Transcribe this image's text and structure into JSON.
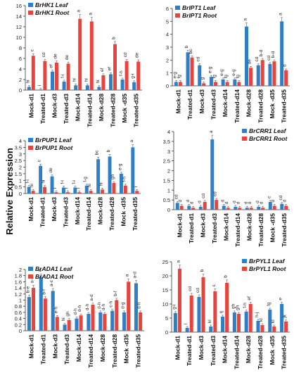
{
  "ylabel": "Relative Expression",
  "chart_data": [
    {
      "type": "bar",
      "categories": [
        "Mock-d1",
        "Treated-d1",
        "Mock-d3",
        "Treated-d3",
        "Mock-d14",
        "Treated-d14",
        "Mock-d28",
        "Treated-d28",
        "Mock -d35",
        "Treated-d35"
      ],
      "ylim": [
        0,
        16
      ],
      "yticks": [
        0,
        2,
        4,
        6,
        8,
        10,
        12,
        14,
        16
      ],
      "grid": false,
      "legend_position": "top-left",
      "series": [
        {
          "name": "BrHK1 Leaf",
          "color": "#2f7fc6",
          "values": [
            0.6,
            0.1,
            3.5,
            1.6,
            0.9,
            0.9,
            0.6,
            3.0,
            2.0,
            1.5
          ],
          "labels": [
            "hi",
            "i",
            "ef",
            "f-i",
            "hi",
            "hi",
            "hi",
            "ef",
            "f-h",
            "g-i"
          ]
        },
        {
          "name": "BrHK1 Root",
          "color": "#e8433c",
          "values": [
            6.5,
            5.5,
            5.2,
            5.0,
            13.5,
            13.0,
            2.8,
            8.7,
            5.5,
            5.4
          ],
          "labels": [
            "c",
            "cd",
            "de",
            "de",
            "a",
            "a",
            "ef",
            "b",
            "cd",
            "de"
          ]
        }
      ]
    },
    {
      "type": "bar",
      "categories": [
        "Mock-d1",
        "Treated-d1",
        "Mock-d3",
        "Treated-d3",
        "Mock-d14",
        "Treated-d14",
        "Mock-d28",
        "Treated-d28",
        "Mock -d35",
        "Treated-d35"
      ],
      "ylim": [
        0,
        6
      ],
      "yticks": [
        0,
        1,
        2,
        3,
        4,
        5,
        6
      ],
      "grid": false,
      "legend_position": "top-left",
      "series": [
        {
          "name": "BrIPT1 Leaf",
          "color": "#2f7fc6",
          "values": [
            0.3,
            2.6,
            1.6,
            0.7,
            0.5,
            0.5,
            4.6,
            1.6,
            1.7,
            5.0
          ],
          "labels": [
            "e-g",
            "b",
            "cd",
            "e-g",
            "e-g",
            "e-g",
            "a",
            "cd",
            "cd",
            "a"
          ]
        },
        {
          "name": "BrIPT1 Root",
          "color": "#e8433c",
          "values": [
            0.3,
            2.2,
            0.2,
            0.3,
            0.3,
            0.3,
            1.4,
            2.0,
            1.9,
            1.2
          ],
          "labels": [
            "fg",
            "bc",
            "g",
            "fg",
            "fg",
            "fg",
            "de",
            "b-d",
            "b-d",
            "d"
          ]
        }
      ]
    },
    {
      "type": "bar",
      "categories": [
        "Mock-d1",
        "Treated-d1",
        "Mock-d3",
        "Treated-d3",
        "Mock-d14",
        "Treated-d14",
        "Mock-d28",
        "Treated-d28",
        "Mock -d35",
        "Treated-d35"
      ],
      "ylim": [
        0,
        4
      ],
      "yticks": [
        0,
        0.5,
        1,
        1.5,
        2,
        2.5,
        3,
        3.5,
        4
      ],
      "grid": false,
      "legend_position": "top-left",
      "series": [
        {
          "name": "BrPUP1 Leaf",
          "color": "#2f7fc6",
          "values": [
            0.5,
            2.1,
            1.3,
            0.45,
            0.45,
            0.6,
            2.6,
            2.8,
            1.5,
            3.5
          ],
          "labels": [
            "f-i",
            "c",
            "de",
            "f-i",
            "f-i",
            "f-g",
            "bc",
            "b",
            "e-g",
            "a"
          ]
        },
        {
          "name": "BrPUP1 Root",
          "color": "#e8433c",
          "values": [
            0.2,
            0.5,
            0.1,
            0.1,
            0.1,
            0.2,
            0.3,
            0.8,
            0.6,
            0.2
          ],
          "labels": [
            "hi",
            "hi",
            "i",
            "i",
            "i",
            "hi",
            "hi",
            "gh",
            "f-h",
            "i"
          ]
        }
      ]
    },
    {
      "type": "bar",
      "categories": [
        "Mock-d1",
        "Treated-d1",
        "Mock-d3",
        "Treated-d3",
        "Mock-d14",
        "Treated-d14",
        "Mock-d28",
        "Treated-d28",
        "Mock -d35",
        "Treated-d35"
      ],
      "ylim": [
        0,
        4
      ],
      "yticks": [
        0,
        0.5,
        1,
        1.5,
        2,
        2.5,
        3,
        3.5,
        4
      ],
      "grid": false,
      "legend_position": "top-right",
      "series": [
        {
          "name": "BrCRR1 Leaf",
          "color": "#2f7fc6",
          "values": [
            0.35,
            0.2,
            0.15,
            3.6,
            0.2,
            0.15,
            0.1,
            0.15,
            0.4,
            0.3
          ],
          "labels": [
            "cd",
            "d",
            "d",
            "a",
            "d",
            "d",
            "d",
            "d",
            "c",
            "cd"
          ]
        },
        {
          "name": "BrCRR1 Root",
          "color": "#e8433c",
          "values": [
            0.2,
            0.1,
            0.4,
            0.5,
            0.1,
            0.1,
            0.1,
            0.1,
            0.2,
            0.2
          ],
          "labels": [
            "d",
            "d",
            "cd",
            "cd",
            "d",
            "d",
            "d",
            "d",
            "d",
            "d"
          ]
        }
      ]
    },
    {
      "type": "bar",
      "categories": [
        "Mock-d1",
        "Treated-d1",
        "Mock-d3",
        "Treated-d3",
        "Mock-d14",
        "Treated-d14",
        "Mock-d28",
        "Treated-d28",
        "Mock -d35",
        "Treated-d35"
      ],
      "ylim": [
        0,
        2
      ],
      "yticks": [
        0,
        0.2,
        0.4,
        0.6,
        0.8,
        1,
        1.2,
        1.4,
        1.6,
        1.8,
        2
      ],
      "grid": false,
      "legend_position": "top-left",
      "series": [
        {
          "name": "BrADA1 Leaf",
          "color": "#2f7fc6",
          "values": [
            1.1,
            1.75,
            1.3,
            0.2,
            0.4,
            0.55,
            0.6,
            0.65,
            0.6,
            1.55
          ],
          "labels": [
            "b-e",
            "a",
            "a-c",
            "hi",
            "d-h",
            "d-h",
            "d-h",
            "c-h",
            "d-g",
            "a-d"
          ]
        },
        {
          "name": "BrADA1 Root",
          "color": "#e8433c",
          "values": [
            1.4,
            1.05,
            0.45,
            0.35,
            0.5,
            0.85,
            0.55,
            1.0,
            1.6,
            0.6
          ],
          "labels": [
            "a-d",
            "b-f",
            "e-h",
            "gh",
            "d-h",
            "a-d",
            "d-h",
            "b-f",
            "a",
            "d-h"
          ]
        }
      ]
    },
    {
      "type": "bar",
      "categories": [
        "Mock-d1",
        "Treated-d1",
        "Mock-d3",
        "Treated-d3",
        "Mock-d14",
        "Treated-d14",
        "Mock-d28",
        "Treated-d28",
        "Mock -d35",
        "Treated-d35"
      ],
      "ylim": [
        0,
        25
      ],
      "yticks": [
        0,
        5,
        10,
        15,
        20,
        25
      ],
      "grid": false,
      "legend_position": "top-right",
      "series": [
        {
          "name": "BrPYL1 Leaf",
          "color": "#2f7fc6",
          "values": [
            6.8,
            1.5,
            12.5,
            2.0,
            5.5,
            7.0,
            7.3,
            4.0,
            8.0,
            10.0
          ],
          "labels": [
            "g-i",
            "l",
            "cd",
            "kl",
            "ij",
            "gh",
            "f-h",
            "h-j",
            "fg",
            "e"
          ]
        },
        {
          "name": "BrPYL1 Root",
          "color": "#e8433c",
          "values": [
            22.5,
            13.0,
            19.5,
            14.5,
            17.5,
            6.5,
            10.0,
            2.5,
            2.0,
            3.8
          ],
          "labels": [
            "a",
            "cd",
            "b",
            "c",
            "b",
            "gh",
            "ef",
            "kl",
            "kl",
            "jk"
          ]
        }
      ]
    }
  ]
}
